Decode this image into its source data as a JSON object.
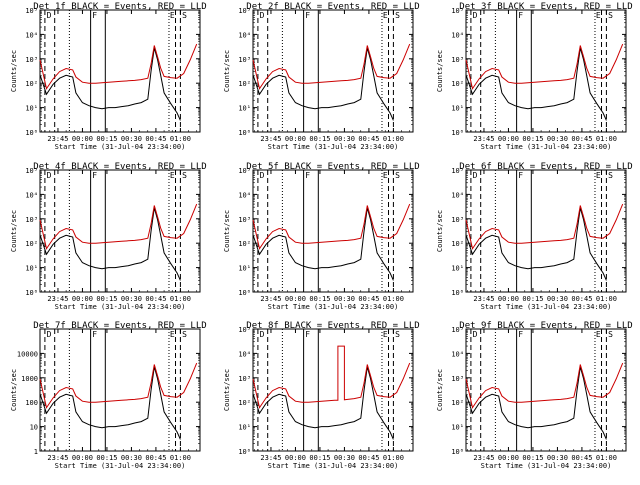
{
  "panels": [
    {
      "title": "Det 1f BLACK = Events, RED = LLD",
      "ylabel": "Counts/sec",
      "xlabel": "Start Time (31-Jul-04 23:34:00)",
      "yticks": [
        {
          "value": 1,
          "label": "10⁰"
        },
        {
          "value": 10,
          "label": "10¹"
        },
        {
          "value": 100,
          "label": "10²"
        },
        {
          "value": 1000,
          "label": "10³"
        },
        {
          "value": 10000,
          "label": "10⁴"
        },
        {
          "value": 100000,
          "label": "10⁵"
        }
      ],
      "xticks": [
        "23:45",
        "00:00",
        "00:15",
        "00:30",
        "00:45",
        "01:00"
      ],
      "markers": [
        "D",
        "F",
        "E",
        "S"
      ]
    },
    {
      "title": "Det 2f BLACK = Events, RED = LLD",
      "ylabel": "Counts/sec",
      "xlabel": "Start Time (31-Jul-04 23:34:00)",
      "yticks": [
        {
          "value": 1,
          "label": "10⁰"
        },
        {
          "value": 10,
          "label": "10¹"
        },
        {
          "value": 100,
          "label": "10²"
        },
        {
          "value": 1000,
          "label": "10³"
        },
        {
          "value": 10000,
          "label": "10⁴"
        },
        {
          "value": 100000,
          "label": "10⁵"
        }
      ],
      "xticks": [
        "23:45",
        "00:00",
        "00:15",
        "00:30",
        "00:45",
        "01:00"
      ],
      "markers": [
        "D",
        "F",
        "E",
        "S"
      ]
    },
    {
      "title": "Det 3f BLACK = Events, RED = LLD",
      "ylabel": "Counts/sec",
      "xlabel": "Start Time (31-Jul-04 23:34:00)",
      "yticks": [
        {
          "value": 1,
          "label": "10⁰"
        },
        {
          "value": 10,
          "label": "10¹"
        },
        {
          "value": 100,
          "label": "10²"
        },
        {
          "value": 1000,
          "label": "10³"
        },
        {
          "value": 10000,
          "label": "10⁴"
        },
        {
          "value": 100000,
          "label": "10⁵"
        }
      ],
      "xticks": [
        "23:45",
        "00:00",
        "00:15",
        "00:30",
        "00:45",
        "01:00"
      ],
      "markers": [
        "D",
        "F",
        "E",
        "S"
      ]
    },
    {
      "title": "Det 4f BLACK = Events, RED = LLD",
      "ylabel": "Counts/sec",
      "xlabel": "Start Time (31-Jul-04 23:34:00)",
      "yticks": [
        {
          "value": 1,
          "label": "10⁰"
        },
        {
          "value": 10,
          "label": "10¹"
        },
        {
          "value": 100,
          "label": "10²"
        },
        {
          "value": 1000,
          "label": "10³"
        },
        {
          "value": 10000,
          "label": "10⁴"
        },
        {
          "value": 100000,
          "label": "10⁵"
        }
      ],
      "xticks": [
        "23:45",
        "00:00",
        "00:15",
        "00:30",
        "00:45",
        "01:00"
      ],
      "markers": [
        "D",
        "F",
        "E",
        "S"
      ]
    },
    {
      "title": "Det 5f BLACK = Events, RED = LLD",
      "ylabel": "Counts/sec",
      "xlabel": "Start Time (31-Jul-04 23:34:00)",
      "yticks": [
        {
          "value": 1,
          "label": "10⁰"
        },
        {
          "value": 10,
          "label": "10¹"
        },
        {
          "value": 100,
          "label": "10²"
        },
        {
          "value": 1000,
          "label": "10³"
        },
        {
          "value": 10000,
          "label": "10⁴"
        },
        {
          "value": 100000,
          "label": "10⁵"
        }
      ],
      "xticks": [
        "23:45",
        "00:00",
        "00:15",
        "00:30",
        "00:45",
        "01:00"
      ],
      "markers": [
        "D",
        "F",
        "E",
        "S"
      ]
    },
    {
      "title": "Det 6f BLACK = Events, RED = LLD",
      "ylabel": "Counts/sec",
      "xlabel": "Start Time (31-Jul-04 23:34:00)",
      "yticks": [
        {
          "value": 1,
          "label": "10⁰"
        },
        {
          "value": 10,
          "label": "10¹"
        },
        {
          "value": 100,
          "label": "10²"
        },
        {
          "value": 1000,
          "label": "10³"
        },
        {
          "value": 10000,
          "label": "10⁴"
        },
        {
          "value": 100000,
          "label": "10⁵"
        }
      ],
      "xticks": [
        "23:45",
        "00:00",
        "00:15",
        "00:30",
        "00:45",
        "01:00"
      ],
      "markers": [
        "D",
        "F",
        "E",
        "S"
      ]
    },
    {
      "title": "Det 7f BLACK = Events, RED = LLD",
      "ylabel": "Counts/sec",
      "xlabel": "Start Time (31-Jul-04 23:34:00)",
      "yticks": [
        {
          "value": 1,
          "label": "1"
        },
        {
          "value": 10,
          "label": "10"
        },
        {
          "value": 100,
          "label": "100"
        },
        {
          "value": 1000,
          "label": "1000"
        },
        {
          "value": 10000,
          "label": "10000"
        }
      ],
      "xticks": [
        "23:45",
        "00:00",
        "00:15",
        "00:30",
        "00:45",
        "01:00"
      ],
      "markers": [
        "D",
        "F",
        "E",
        "S"
      ]
    },
    {
      "title": "Det 8f BLACK = Events, RED = LLD",
      "ylabel": "Counts/sec",
      "xlabel": "Start Time (31-Jul-04 23:34:00)",
      "yticks": [
        {
          "value": 1,
          "label": "10⁰"
        },
        {
          "value": 10,
          "label": "10¹"
        },
        {
          "value": 100,
          "label": "10²"
        },
        {
          "value": 1000,
          "label": "10³"
        },
        {
          "value": 10000,
          "label": "10⁴"
        },
        {
          "value": 100000,
          "label": "10⁵"
        }
      ],
      "xticks": [
        "23:45",
        "00:00",
        "00:15",
        "00:30",
        "00:45",
        "01:00"
      ],
      "markers": [
        "D",
        "F",
        "E",
        "S"
      ]
    },
    {
      "title": "Det 9f BLACK = Events, RED = LLD",
      "ylabel": "Counts/sec",
      "xlabel": "Start Time (31-Jul-04 23:34:00)",
      "yticks": [
        {
          "value": 1,
          "label": "10⁰"
        },
        {
          "value": 10,
          "label": "10¹"
        },
        {
          "value": 100,
          "label": "10²"
        },
        {
          "value": 1000,
          "label": "10³"
        },
        {
          "value": 10000,
          "label": "10⁴"
        },
        {
          "value": 100000,
          "label": "10⁵"
        }
      ],
      "xticks": [
        "23:45",
        "00:00",
        "00:15",
        "00:30",
        "00:45",
        "01:00"
      ],
      "markers": [
        "D",
        "F",
        "E",
        "S"
      ]
    }
  ],
  "chart_data": {
    "type": "line",
    "description_units": "x = minutes after 31-Jul-04 23:34:00, y = counts/sec (log scale)",
    "xlim": [
      0,
      98
    ],
    "ylim": [
      1,
      100000
    ],
    "xticks_minutes": [
      11,
      26,
      41,
      56,
      71,
      86
    ],
    "xtick_labels": [
      "23:45",
      "00:00",
      "00:15",
      "00:30",
      "00:45",
      "01:00"
    ],
    "vlines": [
      {
        "x": 3,
        "style": "dashed"
      },
      {
        "x": 9,
        "style": "dashed"
      },
      {
        "x": 18,
        "style": "dotted"
      },
      {
        "x": 31,
        "style": "solid"
      },
      {
        "x": 40,
        "style": "solid"
      },
      {
        "x": 79,
        "style": "dotted"
      },
      {
        "x": 83,
        "style": "dashed"
      },
      {
        "x": 86,
        "style": "dashed"
      }
    ],
    "series": [
      {
        "name": "Events",
        "color": "#000000",
        "x": [
          0,
          4,
          8,
          12,
          16,
          20,
          22,
          26,
          30,
          34,
          38,
          42,
          46,
          50,
          54,
          58,
          62,
          66,
          68,
          70,
          72,
          74,
          76,
          80,
          84,
          86
        ],
        "y": [
          220,
          35,
          90,
          160,
          210,
          180,
          40,
          16,
          12,
          10,
          9,
          10,
          10,
          11,
          12,
          14,
          16,
          22,
          300,
          2800,
          900,
          200,
          40,
          15,
          6,
          3
        ]
      },
      {
        "name": "LLD",
        "color": "#cc0000",
        "x": [
          0,
          4,
          8,
          12,
          16,
          20,
          22,
          26,
          30,
          34,
          38,
          42,
          46,
          50,
          54,
          58,
          62,
          66,
          68,
          70,
          72,
          74,
          76,
          80,
          84,
          88,
          92,
          96
        ],
        "y": [
          900,
          60,
          150,
          300,
          400,
          350,
          180,
          110,
          100,
          100,
          105,
          110,
          115,
          120,
          125,
          130,
          140,
          160,
          600,
          3500,
          1200,
          400,
          190,
          170,
          160,
          250,
          900,
          4000
        ]
      }
    ],
    "panel_overrides": [
      {
        "panel": "Det 8f",
        "series": "LLD",
        "note": "rectangular spike",
        "x": [
          52,
          56
        ],
        "y": 20000
      }
    ]
  }
}
